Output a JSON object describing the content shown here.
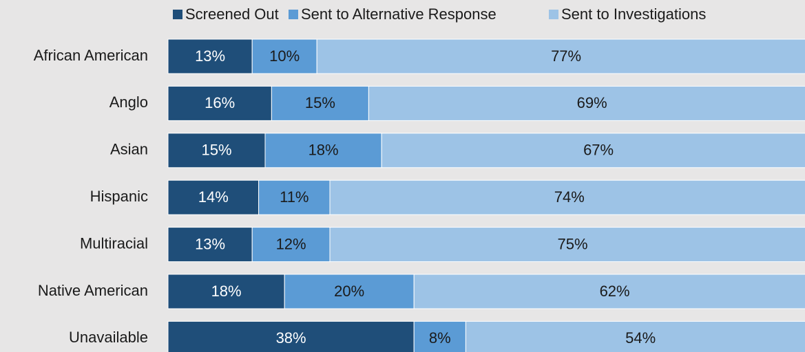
{
  "chart_data": {
    "type": "stacked-bar-horizontal",
    "categories": [
      "African American",
      "Anglo",
      "Asian",
      "Hispanic",
      "Multiracial",
      "Native American",
      "Unavailable"
    ],
    "series": [
      {
        "name": "Screened Out",
        "color": "#1f4e79",
        "label_color": "#ffffff",
        "values": [
          13,
          16,
          15,
          14,
          13,
          18,
          38
        ],
        "value_labels": [
          "13%",
          "16%",
          "15%",
          "14%",
          "13%",
          "18%",
          "38%"
        ]
      },
      {
        "name": "Sent to Alternative Response",
        "color": "#5b9bd5",
        "label_color": "#1a1a1a",
        "values": [
          10,
          15,
          18,
          11,
          12,
          20,
          8
        ],
        "value_labels": [
          "10%",
          "15%",
          "18%",
          "11%",
          "12%",
          "20%",
          "8%"
        ]
      },
      {
        "name": "Sent to Investigations",
        "color": "#9dc3e6",
        "label_color": "#1a1a1a",
        "values": [
          77,
          69,
          67,
          74,
          75,
          62,
          54
        ],
        "value_labels": [
          "77%",
          "69%",
          "67%",
          "74%",
          "75%",
          "62%",
          "54%"
        ]
      }
    ],
    "xlim": [
      0,
      100
    ],
    "legend": "top"
  }
}
